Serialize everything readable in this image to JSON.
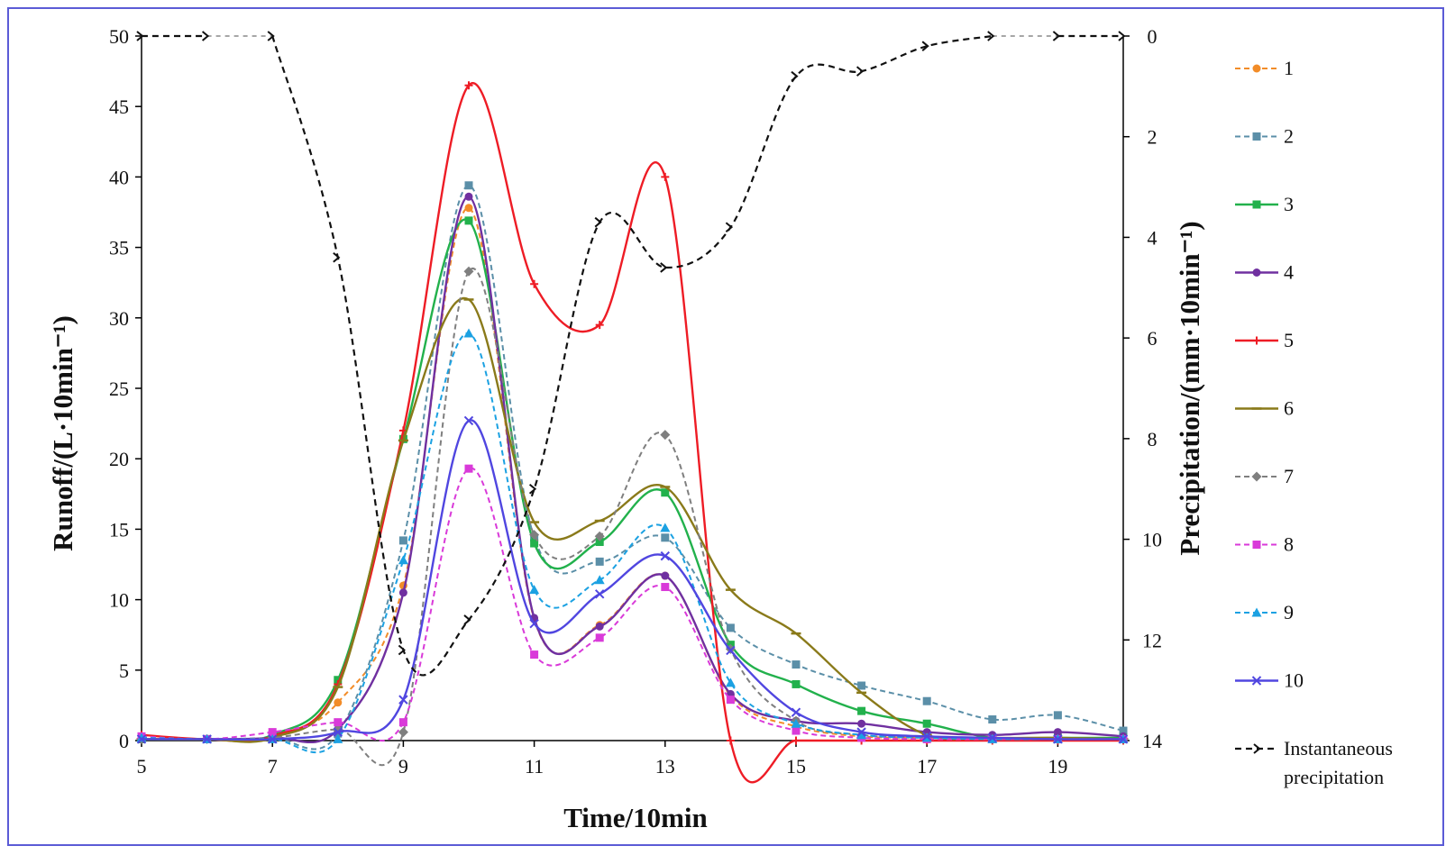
{
  "chart_data": {
    "type": "line",
    "title": "",
    "xlabel": "Time/10min",
    "ylabel": "Runoff/(L·10min⁻¹)",
    "y2label": "Precipitation/(mm·10min⁻¹)",
    "xlim": [
      5,
      20
    ],
    "ylim": [
      0,
      50
    ],
    "y2lim": [
      0,
      14
    ],
    "y2_inverted": true,
    "x_ticks": [
      "5",
      "7",
      "9",
      "11",
      "13",
      "15",
      "17",
      "19"
    ],
    "y_ticks": [
      "0",
      "5",
      "10",
      "15",
      "20",
      "25",
      "30",
      "35",
      "40",
      "45",
      "50"
    ],
    "y2_ticks": [
      "0",
      "2",
      "4",
      "6",
      "8",
      "10",
      "12",
      "14"
    ],
    "x": [
      5,
      6,
      7,
      8,
      9,
      10,
      11,
      12,
      13,
      14,
      15,
      16,
      17,
      18,
      19,
      20
    ],
    "series": [
      {
        "name": "1",
        "color": "#f28c28",
        "dash": true,
        "marker": "circle",
        "values": [
          0.3,
          0.1,
          0.2,
          2.7,
          11.0,
          37.8,
          8.6,
          8.2,
          11.7,
          3.2,
          1.0,
          0.3,
          0.2,
          0.1,
          0.1,
          0.1
        ]
      },
      {
        "name": "2",
        "color": "#5b8fa8",
        "dash": true,
        "marker": "square",
        "values": [
          0.1,
          0.1,
          0.2,
          0.5,
          14.2,
          39.4,
          14.4,
          12.7,
          14.4,
          8.0,
          5.4,
          3.9,
          2.8,
          1.5,
          1.8,
          0.7
        ]
      },
      {
        "name": "3",
        "color": "#22b14c",
        "dash": false,
        "marker": "square",
        "values": [
          0.1,
          0.1,
          0.4,
          4.3,
          21.4,
          36.9,
          14.0,
          14.1,
          17.6,
          6.8,
          4.0,
          2.1,
          1.2,
          0.2,
          0.2,
          0.2
        ]
      },
      {
        "name": "4",
        "color": "#7030a0",
        "dash": false,
        "marker": "circle",
        "values": [
          0.1,
          0.1,
          0.2,
          0.8,
          10.5,
          38.6,
          8.7,
          8.1,
          11.7,
          3.3,
          1.4,
          1.2,
          0.6,
          0.4,
          0.6,
          0.3
        ]
      },
      {
        "name": "5",
        "color": "#ee1c25",
        "dash": false,
        "marker": "plus",
        "values": [
          0.4,
          0.1,
          0.3,
          4.0,
          22.0,
          46.5,
          32.4,
          29.5,
          40.0,
          0.0,
          0.0,
          0.0,
          0.0,
          0.0,
          0.0,
          0.0
        ]
      },
      {
        "name": "6",
        "color": "#8a7a1a",
        "dash": false,
        "marker": "dash",
        "values": [
          0.1,
          0.1,
          0.2,
          3.8,
          21.3,
          31.3,
          15.5,
          15.6,
          18.0,
          10.7,
          7.6,
          3.4,
          0.4,
          0.2,
          0.2,
          0.1
        ]
      },
      {
        "name": "7",
        "color": "#7f7f7f",
        "dash": true,
        "marker": "diamond",
        "values": [
          0.1,
          0.1,
          0.2,
          0.8,
          0.6,
          33.3,
          14.6,
          14.5,
          21.7,
          6.5,
          1.4,
          0.4,
          0.2,
          0.1,
          0.1,
          0.1
        ]
      },
      {
        "name": "8",
        "color": "#d93ad9",
        "dash": true,
        "marker": "square",
        "values": [
          0.3,
          0.1,
          0.6,
          1.3,
          1.3,
          19.3,
          6.1,
          7.3,
          10.9,
          2.9,
          0.7,
          0.2,
          0.1,
          0.1,
          0.1,
          0.1
        ]
      },
      {
        "name": "9",
        "color": "#1ba1e2",
        "dash": true,
        "marker": "triangle",
        "values": [
          0.2,
          0.1,
          0.1,
          0.1,
          12.8,
          28.9,
          10.7,
          11.4,
          15.1,
          4.1,
          1.2,
          0.4,
          0.2,
          0.1,
          0.1,
          0.1
        ]
      },
      {
        "name": "10",
        "color": "#5046e0",
        "dash": false,
        "marker": "x",
        "values": [
          0.1,
          0.1,
          0.1,
          0.6,
          2.9,
          22.7,
          8.3,
          10.4,
          13.1,
          6.4,
          2.0,
          0.6,
          0.3,
          0.2,
          0.1,
          0.1
        ]
      }
    ],
    "precipitation": {
      "name": "Instantaneous precipitation",
      "color": "#111111",
      "x": [
        5,
        6,
        7,
        8,
        9,
        10,
        11,
        12,
        13,
        14,
        15,
        16,
        17,
        18,
        19,
        20
      ],
      "values": [
        0,
        0,
        0,
        4.4,
        12.2,
        11.6,
        9.0,
        3.7,
        4.6,
        3.8,
        0.8,
        0.7,
        0.2,
        0,
        0,
        0
      ],
      "gaps": [
        [
          6,
          7
        ],
        [
          18,
          19
        ]
      ]
    },
    "legend": {
      "position": "right",
      "entries": [
        "1",
        "2",
        "3",
        "4",
        "5",
        "6",
        "7",
        "8",
        "9",
        "10"
      ],
      "precip_line1": "Instantaneous",
      "precip_line2": "precipitation"
    }
  }
}
